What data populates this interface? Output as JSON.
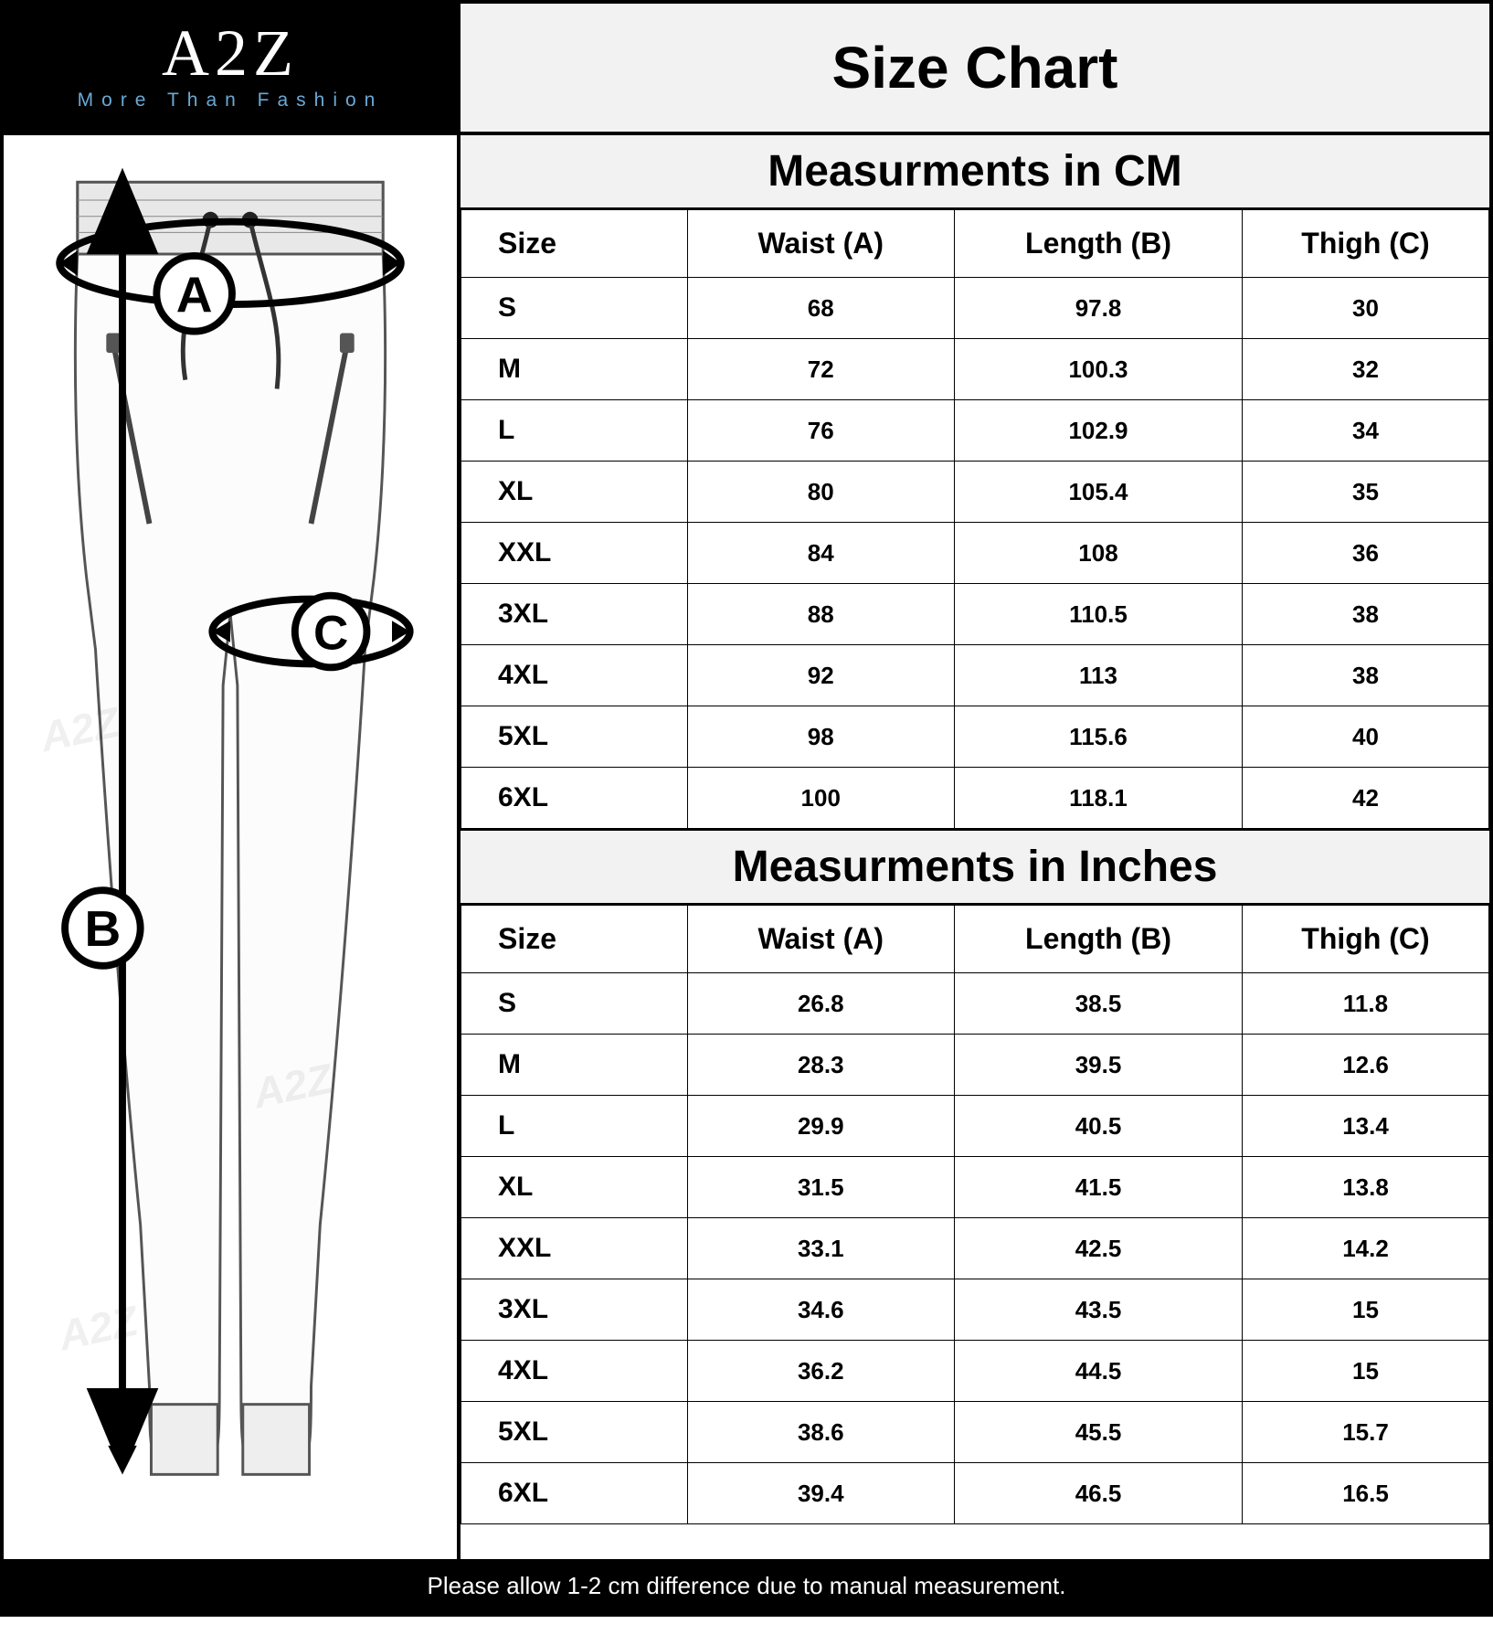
{
  "brand": {
    "logo_main": "A2Z",
    "logo_sub": "More Than Fashion",
    "logo_bg": "#000000",
    "logo_fg": "#ffffff",
    "logo_sub_color": "#6aa9d6"
  },
  "title": "Size Chart",
  "diagram": {
    "labels": {
      "a": "A",
      "b": "B",
      "c": "C"
    },
    "watermark": "A2Z"
  },
  "cm_section": {
    "heading": "Measurments in CM",
    "columns": [
      "Size",
      "Waist (A)",
      "Length (B)",
      "Thigh (C)"
    ],
    "rows": [
      [
        "S",
        "68",
        "97.8",
        "30"
      ],
      [
        "M",
        "72",
        "100.3",
        "32"
      ],
      [
        "L",
        "76",
        "102.9",
        "34"
      ],
      [
        "XL",
        "80",
        "105.4",
        "35"
      ],
      [
        "XXL",
        "84",
        "108",
        "36"
      ],
      [
        "3XL",
        "88",
        "110.5",
        "38"
      ],
      [
        "4XL",
        "92",
        "113",
        "38"
      ],
      [
        "5XL",
        "98",
        "115.6",
        "40"
      ],
      [
        "6XL",
        "100",
        "118.1",
        "42"
      ]
    ]
  },
  "in_section": {
    "heading": "Measurments in Inches",
    "columns": [
      "Size",
      "Waist (A)",
      "Length (B)",
      "Thigh (C)"
    ],
    "rows": [
      [
        "S",
        "26.8",
        "38.5",
        "11.8"
      ],
      [
        "M",
        "28.3",
        "39.5",
        "12.6"
      ],
      [
        "L",
        "29.9",
        "40.5",
        "13.4"
      ],
      [
        "XL",
        "31.5",
        "41.5",
        "13.8"
      ],
      [
        "XXL",
        "33.1",
        "42.5",
        "14.2"
      ],
      [
        "3XL",
        "34.6",
        "43.5",
        "15"
      ],
      [
        "4XL",
        "36.2",
        "44.5",
        "15"
      ],
      [
        "5XL",
        "38.6",
        "45.5",
        "15.7"
      ],
      [
        "6XL",
        "39.4",
        "46.5",
        "16.5"
      ]
    ]
  },
  "footer_note": "Please allow 1-2 cm difference due to manual measurement.",
  "style": {
    "header_bg": "#f2f2f2",
    "border_color": "#000000",
    "title_fontsize": 64,
    "subhead_fontsize": 48,
    "th_fontsize": 32,
    "td_fontsize": 26,
    "footer_bg": "#000000",
    "footer_fg": "#ffffff",
    "col_widths_pct": [
      22,
      26,
      28,
      24
    ]
  }
}
